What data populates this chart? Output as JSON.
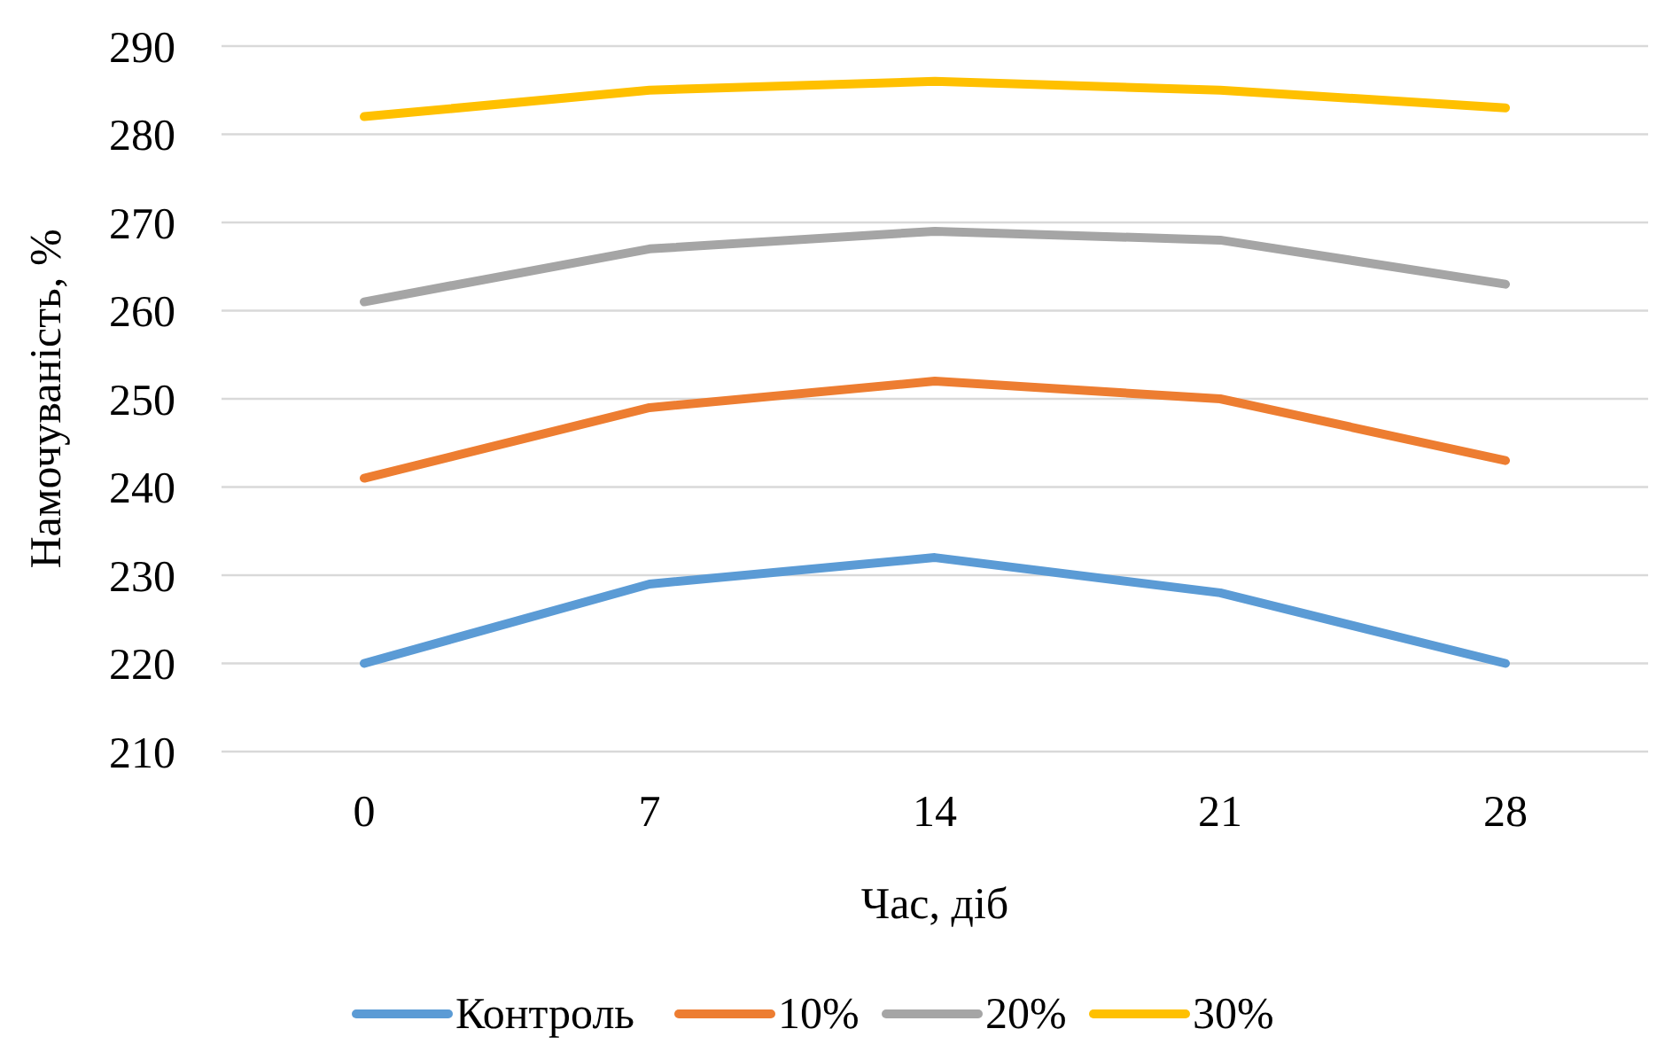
{
  "chart_data": {
    "type": "line",
    "xlabel": "Час, діб",
    "ylabel": "Намочуваність, %",
    "categories": [
      "0",
      "7",
      "14",
      "21",
      "28"
    ],
    "series": [
      {
        "name": "Контроль",
        "color": "#5b9bd5",
        "values": [
          220,
          229,
          232,
          228,
          220
        ]
      },
      {
        "name": "10%",
        "color": "#ed7d31",
        "values": [
          241,
          249,
          252,
          250,
          243
        ]
      },
      {
        "name": "20%",
        "color": "#a5a5a5",
        "values": [
          261,
          267,
          269,
          268,
          263
        ]
      },
      {
        "name": "30%",
        "color": "#ffc000",
        "values": [
          282,
          285,
          286,
          285,
          283
        ]
      }
    ],
    "ylim": [
      210,
      290
    ],
    "yticks": [
      210,
      220,
      230,
      240,
      250,
      260,
      270,
      280,
      290
    ],
    "grid": "y",
    "legend": "bottom",
    "marker": "none",
    "line_style": "solid"
  }
}
